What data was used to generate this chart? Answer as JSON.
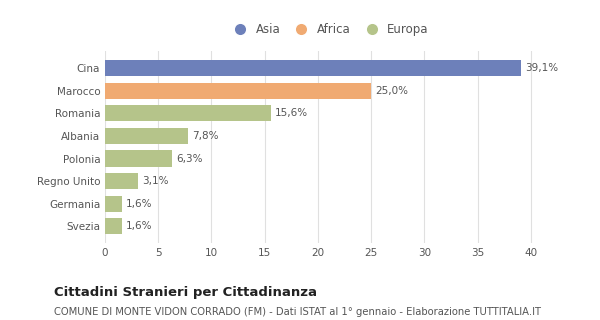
{
  "categories": [
    "Cina",
    "Marocco",
    "Romania",
    "Albania",
    "Polonia",
    "Regno Unito",
    "Germania",
    "Svezia"
  ],
  "values": [
    39.1,
    25.0,
    15.6,
    7.8,
    6.3,
    3.1,
    1.6,
    1.6
  ],
  "labels": [
    "39,1%",
    "25,0%",
    "15,6%",
    "7,8%",
    "6,3%",
    "3,1%",
    "1,6%",
    "1,6%"
  ],
  "colors": [
    "#6d80ba",
    "#f0aa72",
    "#b5c48a",
    "#b5c48a",
    "#b5c48a",
    "#b5c48a",
    "#b5c48a",
    "#b5c48a"
  ],
  "legend": [
    {
      "label": "Asia",
      "color": "#6d80ba"
    },
    {
      "label": "Africa",
      "color": "#f0aa72"
    },
    {
      "label": "Europa",
      "color": "#b5c48a"
    }
  ],
  "xlim": [
    0,
    42
  ],
  "xticks": [
    0,
    5,
    10,
    15,
    20,
    25,
    30,
    35,
    40
  ],
  "title": "Cittadini Stranieri per Cittadinanza",
  "subtitle": "COMUNE DI MONTE VIDON CORRADO (FM) - Dati ISTAT al 1° gennaio - Elaborazione TUTTITALIA.IT",
  "background_color": "#ffffff",
  "grid_color": "#e0e0e0",
  "bar_height": 0.72,
  "title_fontsize": 9.5,
  "subtitle_fontsize": 7.2,
  "tick_fontsize": 7.5,
  "label_fontsize": 7.5,
  "legend_fontsize": 8.5
}
